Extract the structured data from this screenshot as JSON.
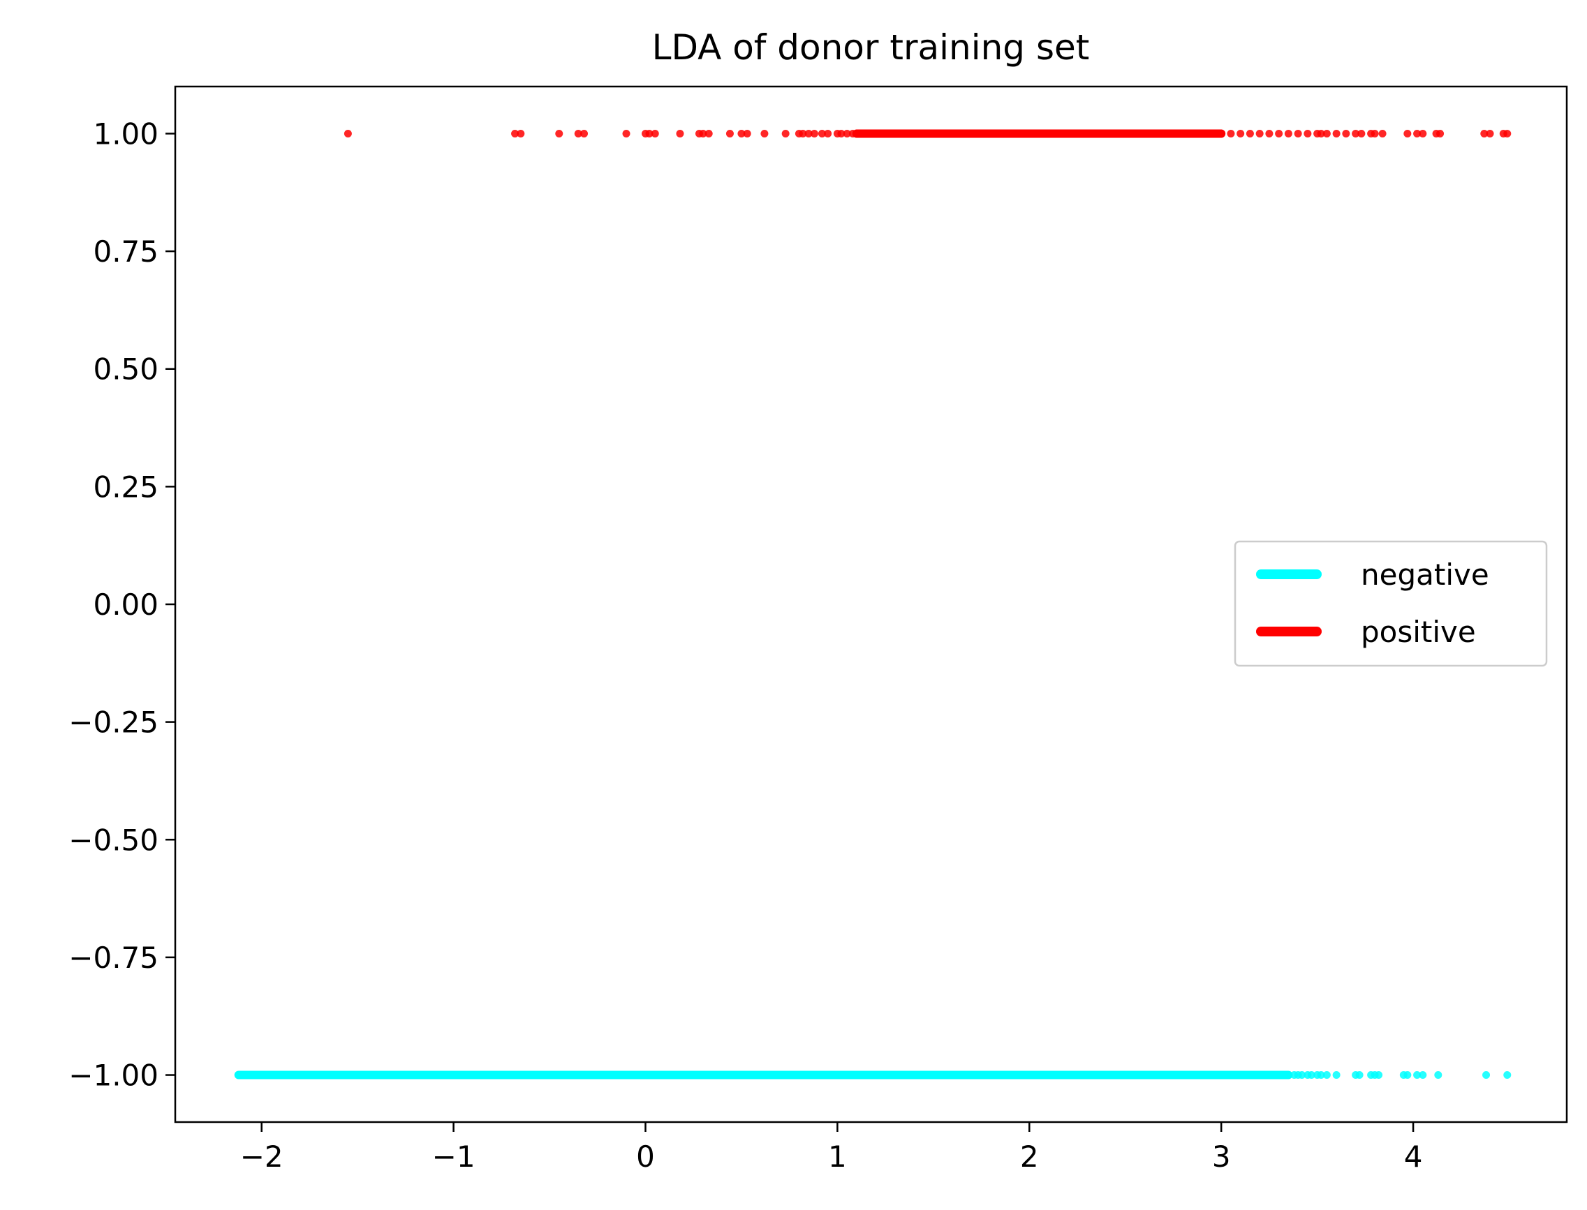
{
  "chart_data": {
    "type": "scatter",
    "title": "LDA of donor training set",
    "xlabel": "",
    "ylabel": "",
    "xlim": [
      -2.45,
      4.8
    ],
    "ylim": [
      -1.1,
      1.1
    ],
    "x_ticks": [
      -2,
      -1,
      0,
      1,
      2,
      3,
      4
    ],
    "x_tick_labels": [
      "−2",
      "−1",
      "0",
      "1",
      "2",
      "3",
      "4"
    ],
    "y_ticks": [
      1.0,
      0.75,
      0.5,
      0.25,
      0.0,
      -0.25,
      -0.5,
      -0.75,
      -1.0
    ],
    "y_tick_labels": [
      "1.00",
      "0.75",
      "0.50",
      "0.25",
      "0.00",
      "−0.25",
      "−0.50",
      "−0.75",
      "−1.00"
    ],
    "grid": false,
    "legend": {
      "placement": "center-right",
      "entries": [
        "negative",
        "positive"
      ]
    },
    "series": [
      {
        "name": "negative",
        "color": "#00ffff",
        "y": -1.0,
        "dense_range": [
          -2.12,
          3.35
        ],
        "x": [
          -2.12,
          -2.1,
          -2.06,
          3.35,
          3.38,
          3.4,
          3.42,
          3.45,
          3.47,
          3.5,
          3.52,
          3.55,
          3.6,
          3.7,
          3.72,
          3.78,
          3.8,
          3.82,
          3.95,
          3.97,
          4.02,
          4.05,
          4.13,
          4.38,
          4.49
        ]
      },
      {
        "name": "positive",
        "color": "#ff0000",
        "y": 1.0,
        "dense_range": [
          1.1,
          3.0
        ],
        "x": [
          -1.55,
          -0.68,
          -0.65,
          -0.45,
          -0.35,
          -0.32,
          -0.1,
          0.0,
          0.02,
          0.05,
          0.18,
          0.28,
          0.3,
          0.33,
          0.44,
          0.5,
          0.53,
          0.62,
          0.73,
          0.8,
          0.82,
          0.85,
          0.88,
          0.92,
          0.95,
          1.0,
          1.02,
          1.05,
          1.08,
          3.0,
          3.05,
          3.1,
          3.15,
          3.2,
          3.25,
          3.3,
          3.35,
          3.4,
          3.45,
          3.5,
          3.52,
          3.55,
          3.6,
          3.65,
          3.7,
          3.73,
          3.78,
          3.8,
          3.84,
          3.97,
          4.02,
          4.05,
          4.12,
          4.14,
          4.37,
          4.4,
          4.47,
          4.49
        ]
      }
    ]
  }
}
